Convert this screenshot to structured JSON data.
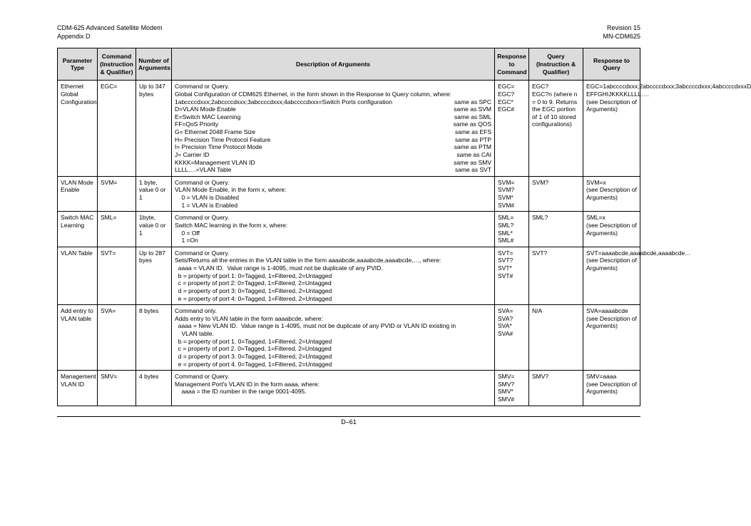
{
  "header": {
    "left1": "CDM-625 Advanced Satellite Modem",
    "left2": "Appendix D",
    "right1": "Revision 15",
    "right2": "MN-CDM625"
  },
  "columns": {
    "c1": "Parameter Type",
    "c2": "Command (Instruction & Qualifier)",
    "c3": "Number of Arguments",
    "c4": "Description of Arguments",
    "c5": "Response to Command",
    "c6": "Query (Instruction & Qualifier)",
    "c7": "Response to Query"
  },
  "rows": {
    "r0": {
      "param": "Ethernet Global Configuration",
      "cmd": "EGC=",
      "narg": "Up to 347 bytes",
      "desc_l1": "Command or Query.",
      "desc_l2": "Global Configuration of CDM625 Ethernet, in the form shown in the Response to Query column, where:",
      "dpairs": [
        {
          "l": "1abccccdxxx;2abccccdxxx;3abccccdxxx;4abccccdxxx=Switch Ports configuration",
          "r": "same as SPC"
        },
        {
          "l": "D=VLAN Mode Enable",
          "r": "same as SVM"
        },
        {
          "l": "E=Switch MAC Learning",
          "r": "same as SML"
        },
        {
          "l": "FF=QoS Priority",
          "r": "same as QOS"
        },
        {
          "l": "G= Ethernet 2048 Frame Size",
          "r": "same as EFS"
        },
        {
          "l": "H= Precision Time Protocol Feature",
          "r": "same as PTP"
        },
        {
          "l": "I= Precision Time Protocol Mode",
          "r": "same as PTM"
        },
        {
          "l": "J= Carrier ID",
          "r": "same as CAI"
        },
        {
          "l": "KKKK=Management VLAN ID",
          "r": "same as SMV"
        },
        {
          "l": "LLLL….=VLAN Table",
          "r": "same as SVT"
        }
      ],
      "respc": "EGC=\nEGC?\nEGC*\nEGC#",
      "query": "EGC?\nEGC?n (where n = 0 to 9. Returns the EGC portion of 1 of 10 stored configurations)",
      "respq": "EGC=1abccccdxxx;2abccccdxxx;3abccccdxxx;4abccccdxxxD EFFGHIJKKKKLLLL….\n(see Description of Arguments)"
    },
    "r1": {
      "param": "VLAN Mode Enable",
      "cmd": "SVM=",
      "narg": "1 byte, value 0 or 1",
      "desc": "Command or Query.\nVLAN Mode Enable, in the form x, where:\n    0 = VLAN is Disabled\n    1 = VLAN is Enabled",
      "respc": "SVM=\nSVM?\nSVM*\nSVM#",
      "query": "SVM?",
      "respq": "SVM=x\n(see Description of Arguments)"
    },
    "r2": {
      "param": "Switch MAC Learning",
      "cmd": "SML=",
      "narg": "1byte, value 0 or 1",
      "desc": "Command or Query.\nSwitch MAC learning in the form x, where:\n    0 = Off\n    1 =On",
      "respc": "SML=\nSML?\nSML*\nSML#",
      "query": "SML?",
      "respq": "SML=x\n(see Description of Arguments)"
    },
    "r3": {
      "param": "VLAN Table",
      "cmd": "SVT=",
      "narg": "Up to 287 byes",
      "desc": "Command or Query.\nSets/Returns all the entries in the VLAN table in the form aaaabcde,aaaabcde,aaaabcde,…, where:\n  aaaa = VLAN ID.  Value range is 1-4095, must not be duplicate of any PVID.\n  b = property of port 1: 0=Tagged, 1=Filtered, 2=Untagged\n  c = property of port 2: 0=Tagged, 1=Filtered, 2=Untagged\n  d = property of port 3: 0=Tagged, 1=Filtered, 2=Untagged\n  e = property of port 4: 0=Tagged, 1=Filtered, 2=Untagged",
      "respc": "SVT=\nSVT?\nSVT*\nSVT#",
      "query": "SVT?",
      "respq": "SVT=aaaabcde,aaaabcde,aaaabcde…\n(see Description of Arguments)"
    },
    "r4": {
      "param": "Add entry to VLAN table",
      "cmd": "SVA=",
      "narg": "8 bytes",
      "desc": "Command only.\nAdds entry to VLAN table in the form aaaabcde, where:\n  aaaa = New VLAN ID.  Value range is 1-4095, must not be duplicate of any PVID or VLAN ID existing in\n    VLAN table.\n  b = property of port 1. 0=Tagged, 1=Filtered, 2=Untagged\n  c = property of port 2. 0=Tagged, 1=Filtered, 2=Untagged\n  d = property of port 3. 0=Tagged, 1=Filtered, 2=Untagged\n  e = property of port 4. 0=Tagged, 1=Filtered, 2=Untagged",
      "respc": "SVA=\nSVA?\nSVA*\nSVA#",
      "query": "N/A",
      "respq": "SVA=aaaabcde\n(see Description of Arguments)"
    },
    "r5": {
      "param": "Management VLAN ID",
      "cmd": "SMV=",
      "narg": "4 bytes",
      "desc": "Command or Query.\nManagement Port's VLAN ID in the form aaaa, where:\n    aaaa = the ID number in the range 0001-4095.",
      "respc": "SMV=\nSMV?\nSMV*\nSMV#",
      "query": "SMV?",
      "respq": "SMV=aaaa\n(see Description of Arguments)"
    }
  },
  "footer": "D–61"
}
